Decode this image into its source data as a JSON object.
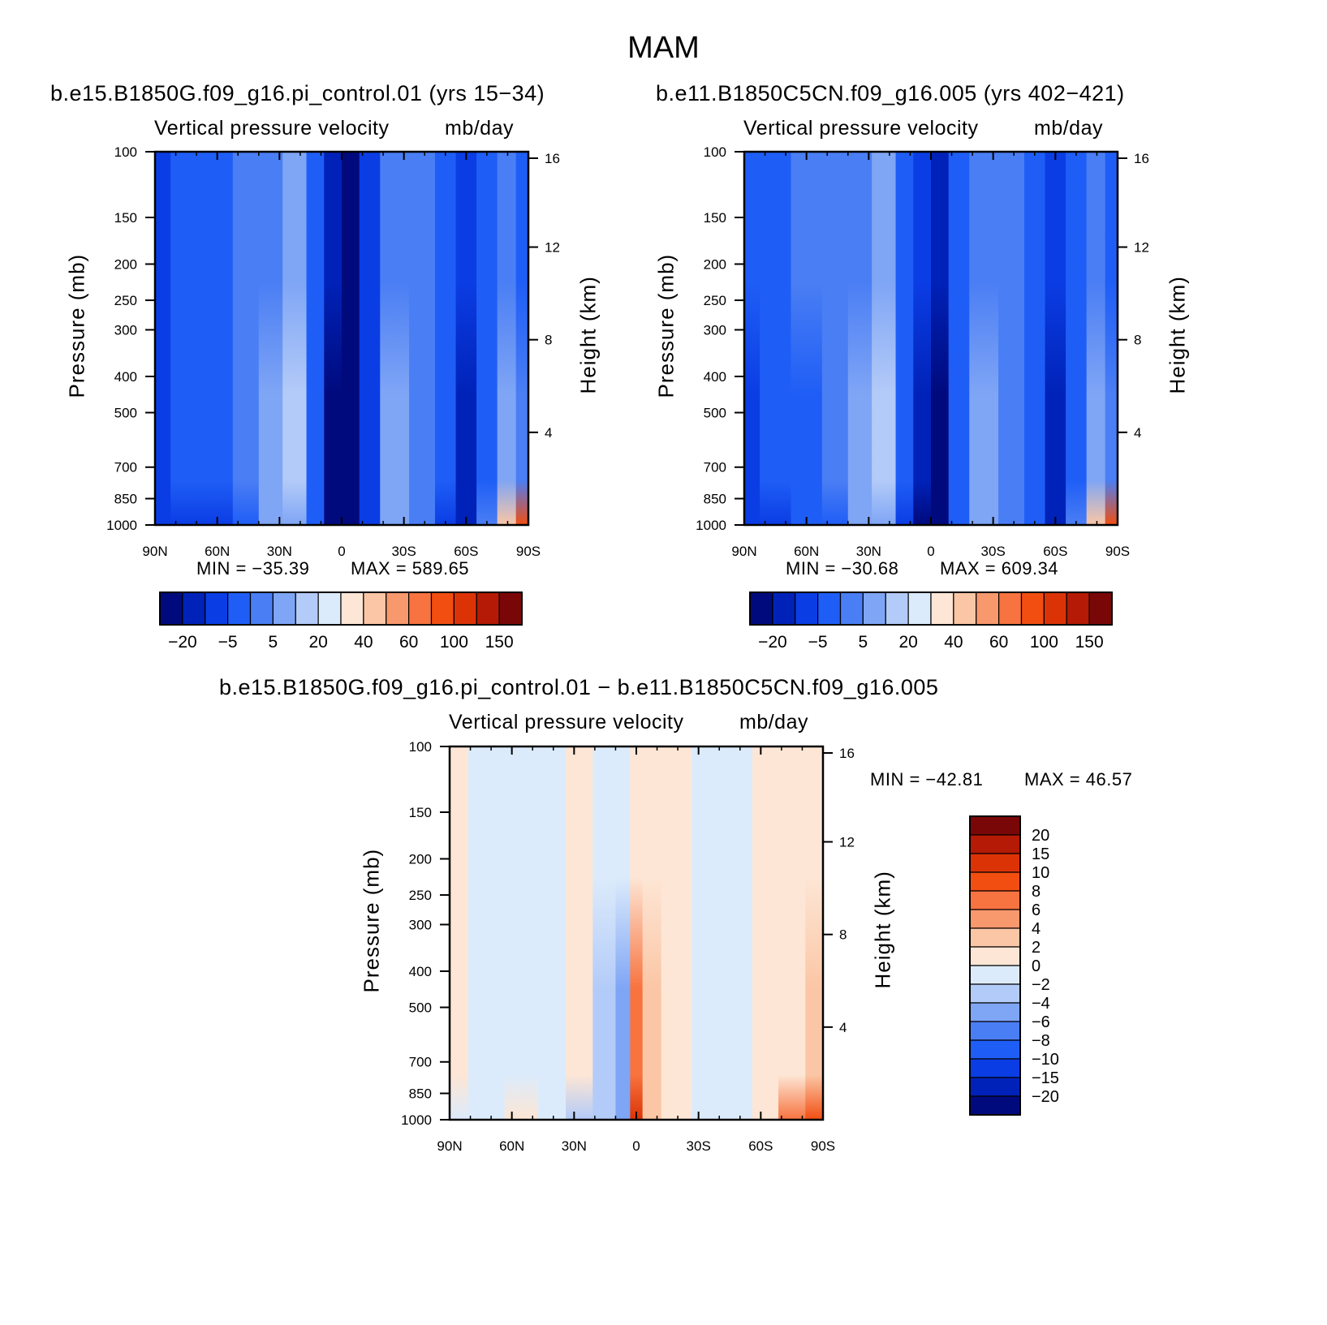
{
  "title": "MAM",
  "panels": [
    {
      "id": "p1",
      "title": "b.e15.B1850G.f09_g16.pi_control.01 (yrs 15-34)",
      "chart_title": "Vertical pressure velocity",
      "units": "mb/day",
      "min_label": "MIN = -35.39",
      "max_label": "MAX = 589.65",
      "ylabel": "Pressure (mb)",
      "ylabel_right": "Height (km)"
    },
    {
      "id": "p2",
      "title": "b.e11.B1850C5CN.f09_g16.005 (yrs 402-421)",
      "chart_title": "Vertical pressure velocity",
      "units": "mb/day",
      "min_label": "MIN = -30.68",
      "max_label": "MAX = 609.34",
      "ylabel": "Pressure (mb)",
      "ylabel_right": "Height (km)"
    },
    {
      "id": "p3",
      "title": "b.e15.B1850G.f09_g16.pi_control.01 - b.e11.B1850C5CN.f09_g16.005",
      "chart_title": "Vertical pressure velocity",
      "units": "mb/day",
      "min_label": "MIN = -42.81",
      "max_label": "MAX =  46.57",
      "ylabel": "Pressure (mb)",
      "ylabel_right": "Height (km)"
    }
  ],
  "chart_data": [
    {
      "type": "heatmap",
      "panel": "p1",
      "x_ticks": [
        "90N",
        "60N",
        "30N",
        "0",
        "30S",
        "60S",
        "90S"
      ],
      "x_values": [
        90,
        60,
        30,
        0,
        -30,
        -60,
        -90
      ],
      "y_ticks": [
        100,
        150,
        200,
        250,
        300,
        400,
        500,
        700,
        850,
        1000
      ],
      "y_scale": "log",
      "ylim": [
        1000,
        100
      ],
      "height_ticks_km": [
        4,
        8,
        12,
        16
      ],
      "colorbar_ticks": [
        "-20",
        "-5",
        "5",
        "20",
        "40",
        "60",
        "100",
        "150"
      ],
      "field": {
        "columns": [
          {
            "lat": 90,
            "upper": 2,
            "mid": 2,
            "low": 2
          },
          {
            "lat": 75,
            "upper": 3,
            "mid": 3,
            "low": 2
          },
          {
            "lat": 60,
            "upper": 3,
            "mid": 3,
            "low": 2
          },
          {
            "lat": 45,
            "upper": 4,
            "mid": 4,
            "low": 3
          },
          {
            "lat": 35,
            "upper": 4,
            "mid": 5,
            "low": 5
          },
          {
            "lat": 22,
            "upper": 5,
            "mid": 6,
            "low": 5
          },
          {
            "lat": 12,
            "upper": 3,
            "mid": 3,
            "low": 3
          },
          {
            "lat": 5,
            "upper": 1,
            "mid": 0,
            "low": 0
          },
          {
            "lat": -5,
            "upper": 0,
            "mid": 0,
            "low": 0
          },
          {
            "lat": -12,
            "upper": 2,
            "mid": 2,
            "low": 2
          },
          {
            "lat": -25,
            "upper": 4,
            "mid": 5,
            "low": 5
          },
          {
            "lat": -40,
            "upper": 4,
            "mid": 4,
            "low": 4
          },
          {
            "lat": -50,
            "upper": 3,
            "mid": 3,
            "low": 2
          },
          {
            "lat": -60,
            "upper": 2,
            "mid": 1,
            "low": 1
          },
          {
            "lat": -70,
            "upper": 3,
            "mid": 3,
            "low": 4
          },
          {
            "lat": -80,
            "upper": 4,
            "mid": 5,
            "low": 9
          },
          {
            "lat": -88,
            "upper": 3,
            "mid": 4,
            "low": 12
          }
        ]
      }
    },
    {
      "type": "heatmap",
      "panel": "p2",
      "x_ticks": [
        "90N",
        "60N",
        "30N",
        "0",
        "30S",
        "60S",
        "90S"
      ],
      "x_values": [
        90,
        60,
        30,
        0,
        -30,
        -60,
        -90
      ],
      "y_ticks": [
        100,
        150,
        200,
        250,
        300,
        400,
        500,
        700,
        850,
        1000
      ],
      "y_scale": "log",
      "ylim": [
        1000,
        100
      ],
      "height_ticks_km": [
        4,
        8,
        12,
        16
      ],
      "colorbar_ticks": [
        "-20",
        "-5",
        "5",
        "20",
        "40",
        "60",
        "100",
        "150"
      ],
      "field": {
        "columns": [
          {
            "lat": 90,
            "upper": 3,
            "mid": 2,
            "low": 2
          },
          {
            "lat": 75,
            "upper": 3,
            "mid": 3,
            "low": 2
          },
          {
            "lat": 60,
            "upper": 4,
            "mid": 3,
            "low": 3
          },
          {
            "lat": 45,
            "upper": 4,
            "mid": 4,
            "low": 3
          },
          {
            "lat": 35,
            "upper": 4,
            "mid": 5,
            "low": 5
          },
          {
            "lat": 22,
            "upper": 5,
            "mid": 6,
            "low": 5
          },
          {
            "lat": 12,
            "upper": 3,
            "mid": 3,
            "low": 2
          },
          {
            "lat": 5,
            "upper": 2,
            "mid": 1,
            "low": 0
          },
          {
            "lat": -5,
            "upper": 1,
            "mid": 0,
            "low": 0
          },
          {
            "lat": -12,
            "upper": 3,
            "mid": 3,
            "low": 3
          },
          {
            "lat": -25,
            "upper": 4,
            "mid": 5,
            "low": 5
          },
          {
            "lat": -40,
            "upper": 4,
            "mid": 4,
            "low": 4
          },
          {
            "lat": -50,
            "upper": 3,
            "mid": 3,
            "low": 3
          },
          {
            "lat": -60,
            "upper": 2,
            "mid": 1,
            "low": 1
          },
          {
            "lat": -70,
            "upper": 3,
            "mid": 3,
            "low": 4
          },
          {
            "lat": -80,
            "upper": 4,
            "mid": 5,
            "low": 9
          },
          {
            "lat": -88,
            "upper": 3,
            "mid": 4,
            "low": 12
          }
        ]
      }
    },
    {
      "type": "heatmap",
      "panel": "p3",
      "x_ticks": [
        "90N",
        "60N",
        "30N",
        "0",
        "30S",
        "60S",
        "90S"
      ],
      "x_values": [
        90,
        60,
        30,
        0,
        -30,
        -60,
        -90
      ],
      "y_ticks": [
        100,
        150,
        200,
        250,
        300,
        400,
        500,
        700,
        850,
        1000
      ],
      "y_scale": "log",
      "ylim": [
        1000,
        100
      ],
      "height_ticks_km": [
        4,
        8,
        12,
        16
      ],
      "colorbar_ticks": [
        "20",
        "15",
        "10",
        "8",
        "6",
        "4",
        "2",
        "0",
        "-2",
        "-4",
        "-6",
        "-8",
        "-10",
        "-15",
        "-20"
      ],
      "field": {
        "columns": [
          {
            "lat": 90,
            "upper": 7,
            "mid": 7,
            "low": 8
          },
          {
            "lat": 72,
            "upper": 8,
            "mid": 8,
            "low": 8
          },
          {
            "lat": 55,
            "upper": 8,
            "mid": 8,
            "low": 7
          },
          {
            "lat": 40,
            "upper": 8,
            "mid": 8,
            "low": 8
          },
          {
            "lat": 28,
            "upper": 7,
            "mid": 7,
            "low": 9
          },
          {
            "lat": 14,
            "upper": 8,
            "mid": 9,
            "low": 9
          },
          {
            "lat": 6,
            "upper": 8,
            "mid": 10,
            "low": 10
          },
          {
            "lat": 0,
            "upper": 7,
            "mid": 4,
            "low": 2
          },
          {
            "lat": -6,
            "upper": 7,
            "mid": 6,
            "low": 6
          },
          {
            "lat": -18,
            "upper": 7,
            "mid": 7,
            "low": 7
          },
          {
            "lat": -35,
            "upper": 8,
            "mid": 8,
            "low": 8
          },
          {
            "lat": -50,
            "upper": 8,
            "mid": 8,
            "low": 8
          },
          {
            "lat": -62,
            "upper": 7,
            "mid": 7,
            "low": 7
          },
          {
            "lat": -75,
            "upper": 7,
            "mid": 7,
            "low": 4
          },
          {
            "lat": -88,
            "upper": 7,
            "mid": 6,
            "low": 3
          }
        ]
      }
    }
  ],
  "colors": {
    "abs_palette": [
      "#000a7d",
      "#0022b8",
      "#0b3de4",
      "#1f5ef6",
      "#4a7ef4",
      "#7fa5f5",
      "#b3cbf8",
      "#dcebfb",
      "#fde6d5",
      "#fbc6a5",
      "#f8986d",
      "#f7733f",
      "#f24e12",
      "#dc3306",
      "#b41a05",
      "#7a0707"
    ],
    "diff_palette": [
      "#7a0707",
      "#b41a05",
      "#dc3306",
      "#f24e12",
      "#f7733f",
      "#f8986d",
      "#fbc6a5",
      "#fde6d5",
      "#dcebfb",
      "#b3cbf8",
      "#7fa5f5",
      "#4a7ef4",
      "#1f5ef6",
      "#0b3de4",
      "#0022b8",
      "#000a7d"
    ]
  }
}
